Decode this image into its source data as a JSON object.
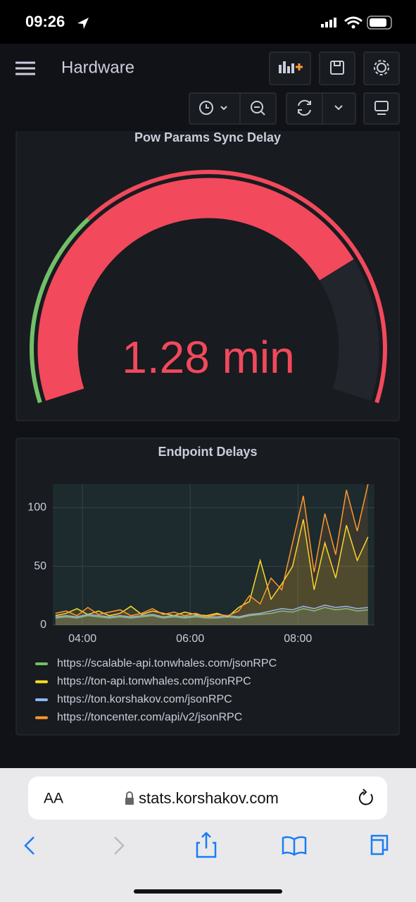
{
  "status_bar": {
    "time": "09:26"
  },
  "header": {
    "title": "Hardware"
  },
  "gauge": {
    "title": "Pow Params Sync Delay",
    "value": 1.28,
    "value_label": "1.28 min",
    "min": 0,
    "max": 1.66,
    "thresholds": [
      {
        "value": 0,
        "color": "#73bf69"
      },
      {
        "value": 0.5,
        "color": "#f2495c"
      }
    ]
  },
  "chart_data": {
    "type": "line",
    "title": "Endpoint Delays",
    "x": [
      3.5,
      3.7,
      3.9,
      4.1,
      4.3,
      4.5,
      4.7,
      4.9,
      5.1,
      5.3,
      5.5,
      5.7,
      5.9,
      6.1,
      6.3,
      6.5,
      6.7,
      6.9,
      7.1,
      7.3,
      7.5,
      7.7,
      7.9,
      8.1,
      8.3,
      8.5,
      8.7,
      8.9,
      9.1,
      9.3
    ],
    "xlim": [
      3.45,
      9.42
    ],
    "xticks": [
      {
        "value": 4,
        "label": "04:00"
      },
      {
        "value": 6,
        "label": "06:00"
      },
      {
        "value": 8,
        "label": "08:00"
      }
    ],
    "ylim": [
      0,
      120
    ],
    "yticks": [
      0,
      50,
      100
    ],
    "grid": true,
    "series": [
      {
        "name": "https://scalable-api.tonwhales.com/jsonRPC",
        "color": "#73bf69",
        "values": [
          6,
          7,
          6,
          8,
          7,
          6,
          7,
          6,
          7,
          8,
          6,
          7,
          6,
          7,
          6,
          6,
          7,
          6,
          8,
          9,
          10,
          12,
          11,
          14,
          12,
          15,
          13,
          14,
          12,
          13
        ]
      },
      {
        "name": "https://ton-api.tonwhales.com/jsonRPC",
        "color": "#fade2a",
        "values": [
          8,
          10,
          14,
          9,
          12,
          8,
          10,
          16,
          9,
          12,
          10,
          8,
          11,
          9,
          8,
          10,
          7,
          15,
          20,
          55,
          22,
          35,
          50,
          90,
          30,
          70,
          40,
          85,
          55,
          75
        ]
      },
      {
        "name": "https://ton.korshakov.com/jsonRPC",
        "color": "#8ab8ff",
        "values": [
          7,
          8,
          7,
          9,
          8,
          7,
          8,
          7,
          8,
          9,
          7,
          8,
          7,
          8,
          7,
          7,
          8,
          7,
          9,
          10,
          12,
          14,
          13,
          16,
          14,
          17,
          15,
          16,
          14,
          15
        ]
      },
      {
        "name": "https://toncenter.com/api/v2/jsonRPC",
        "color": "#ff9830",
        "values": [
          10,
          12,
          8,
          15,
          9,
          11,
          13,
          8,
          10,
          14,
          9,
          11,
          8,
          10,
          7,
          9,
          8,
          12,
          25,
          18,
          40,
          30,
          70,
          110,
          45,
          95,
          60,
          115,
          80,
          120
        ]
      }
    ]
  },
  "browser": {
    "text_size": "AA",
    "url": "stats.korshakov.com"
  }
}
